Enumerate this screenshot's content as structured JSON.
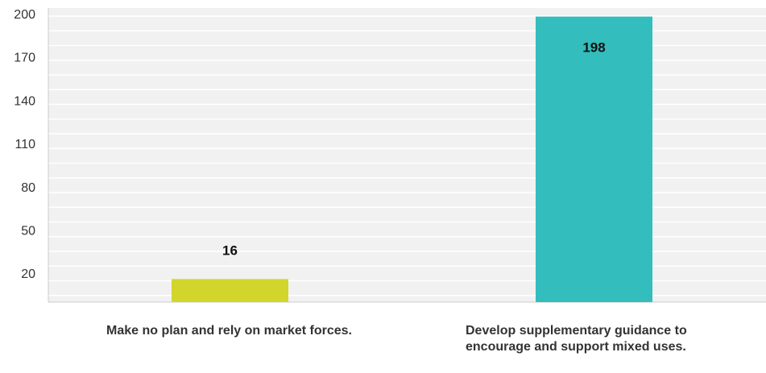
{
  "chart_data": {
    "type": "bar",
    "categories": [
      "Make no plan and rely on market forces.",
      "Develop supplementary guidance to encourage and support mixed uses."
    ],
    "values": [
      16,
      198
    ],
    "data_labels": [
      "16",
      "198"
    ],
    "yticks": [
      20,
      50,
      80,
      110,
      140,
      170,
      200
    ],
    "ylim": [
      0,
      200
    ],
    "grid": true,
    "legend": "none",
    "title": "",
    "xlabel": "",
    "ylabel": "",
    "colors": [
      "#d2d62c",
      "#33bdbd"
    ]
  }
}
